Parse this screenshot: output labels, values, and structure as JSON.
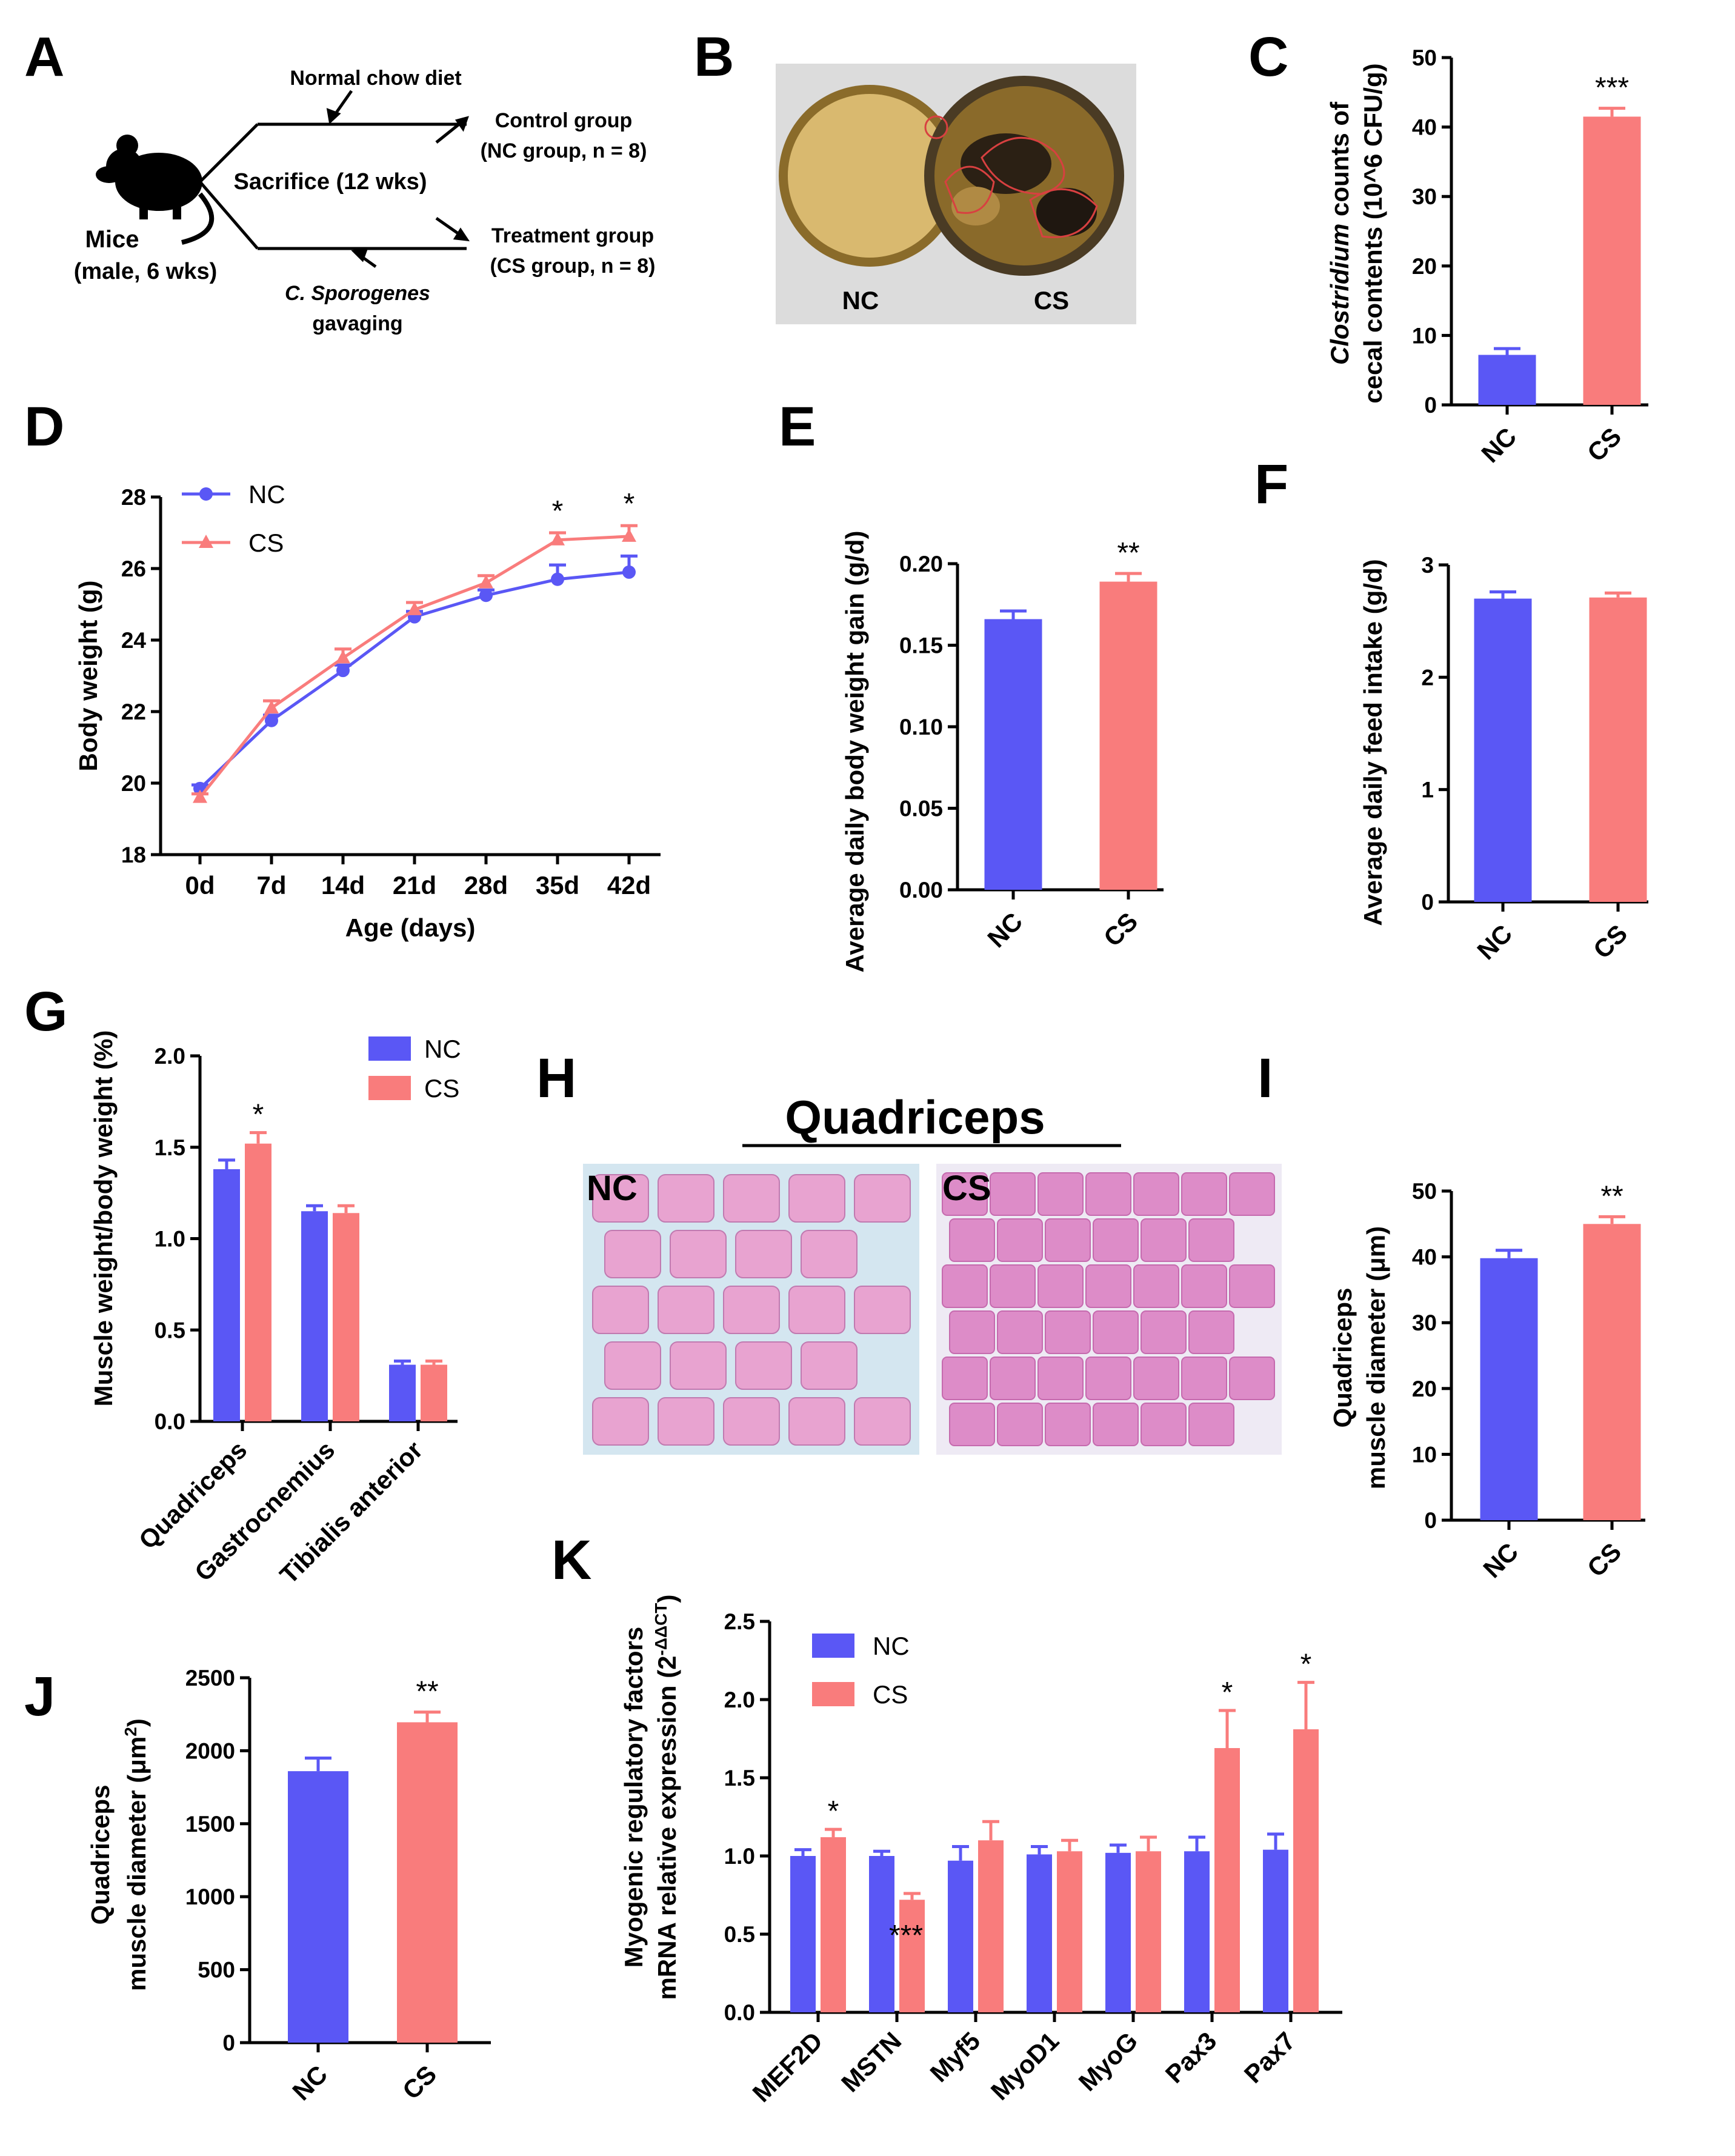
{
  "colors": {
    "nc": "#5a57f5",
    "cs": "#f97c7c",
    "axis": "#000000"
  },
  "panel_labels": [
    "A",
    "B",
    "C",
    "D",
    "E",
    "F",
    "G",
    "H",
    "I",
    "J",
    "K"
  ],
  "diagram": {
    "diet": "Normal chow diet",
    "mice": "Mice",
    "mice_info": "(male, 6 wks)",
    "sacrifice": "Sacrifice (12 wks)",
    "control": "Control group",
    "control_n": "(NC group, n = 8)",
    "treatment": "Treatment group",
    "treatment_n": "(CS group, n = 8)",
    "gavage_species": "C. Sporogenes",
    "gavage": "gavaging",
    "mouse_icon": "mouse-icon"
  },
  "photo_b": {
    "left_label": "NC",
    "right_label": "CS"
  },
  "histology": {
    "title": "Quadriceps",
    "left_label": "NC",
    "right_label": "CS"
  },
  "chart_data": [
    {
      "id": "C",
      "type": "bar",
      "categories": [
        "NC",
        "CS"
      ],
      "values": [
        7.2,
        41.5
      ],
      "errors": [
        0.9,
        1.2
      ],
      "ylim": [
        0,
        50
      ],
      "yticks": [
        0,
        10,
        20,
        30,
        40,
        50
      ],
      "ylabel_italic": "Clostridium",
      "ylabel_rest": " counts of",
      "ylabel2": "cecal contents (10^6 CFU/g)",
      "annotations": [
        "",
        "***"
      ]
    },
    {
      "id": "D",
      "type": "line",
      "x": [
        "0d",
        "7d",
        "14d",
        "21d",
        "28d",
        "35d",
        "42d"
      ],
      "series": [
        {
          "name": "NC",
          "values": [
            19.85,
            21.75,
            23.15,
            24.65,
            25.25,
            25.7,
            25.9
          ],
          "errors": [
            0.1,
            0.15,
            0.15,
            0.15,
            0.15,
            0.4,
            0.45
          ]
        },
        {
          "name": "CS",
          "values": [
            19.6,
            22.1,
            23.5,
            24.85,
            25.6,
            26.8,
            26.9
          ],
          "errors": [
            0.1,
            0.2,
            0.25,
            0.2,
            0.2,
            0.2,
            0.3
          ]
        }
      ],
      "ylim": [
        18,
        28
      ],
      "yticks": [
        18,
        20,
        22,
        24,
        26,
        28
      ],
      "xlabel": "Age (days)",
      "ylabel": "Body weight (g)",
      "annotations": [
        "",
        "",
        "",
        "",
        "",
        "*",
        "*"
      ]
    },
    {
      "id": "E",
      "type": "bar",
      "categories": [
        "NC",
        "CS"
      ],
      "values": [
        0.166,
        0.189
      ],
      "errors": [
        0.005,
        0.005
      ],
      "ylim": [
        0,
        0.2
      ],
      "yticks": [
        "0.00",
        "0.05",
        "0.10",
        "0.15",
        "0.20"
      ],
      "ylabel": "Average daily body weight gain (g/d)",
      "annotations": [
        "",
        "**"
      ]
    },
    {
      "id": "F",
      "type": "bar",
      "categories": [
        "NC",
        "CS"
      ],
      "values": [
        2.7,
        2.71
      ],
      "errors": [
        0.06,
        0.04
      ],
      "ylim": [
        0,
        3
      ],
      "yticks": [
        0,
        1,
        2,
        3
      ],
      "ylabel": "Average daily feed intake (g/d)",
      "annotations": [
        "",
        ""
      ]
    },
    {
      "id": "G",
      "type": "bar",
      "categories": [
        "Quadriceps",
        "Gastrocnemius",
        "Tibialis anterior"
      ],
      "series": [
        {
          "name": "NC",
          "values": [
            1.38,
            1.15,
            0.31
          ],
          "errors": [
            0.05,
            0.03,
            0.02
          ]
        },
        {
          "name": "CS",
          "values": [
            1.52,
            1.14,
            0.31
          ],
          "errors": [
            0.06,
            0.04,
            0.02
          ]
        }
      ],
      "ylim": [
        0,
        2.0
      ],
      "yticks": [
        "0.0",
        "0.5",
        "1.0",
        "1.5",
        "2.0"
      ],
      "ylabel": "Muscle weight/body weight (%)",
      "annotations": [
        "*",
        "",
        ""
      ]
    },
    {
      "id": "I",
      "type": "bar",
      "categories": [
        "NC",
        "CS"
      ],
      "values": [
        39.8,
        45.0
      ],
      "errors": [
        1.2,
        1.1
      ],
      "ylim": [
        0,
        50
      ],
      "yticks": [
        0,
        10,
        20,
        30,
        40,
        50
      ],
      "ylabel": "Quadriceps",
      "ylabel2": "muscle diameter (μm)",
      "annotations": [
        "",
        "**"
      ]
    },
    {
      "id": "J",
      "type": "bar",
      "categories": [
        "NC",
        "CS"
      ],
      "values": [
        1860,
        2195
      ],
      "errors": [
        90,
        70
      ],
      "ylim": [
        0,
        2500
      ],
      "yticks": [
        0,
        500,
        1000,
        1500,
        2000,
        2500
      ],
      "ylabel": "Quadriceps",
      "ylabel2_main": "muscle diameter (μm",
      "ylabel2_sup": "2",
      "ylabel2_end": ")",
      "annotations": [
        "",
        "**"
      ]
    },
    {
      "id": "K",
      "type": "bar",
      "categories": [
        "MEF2D",
        "MSTN",
        "Myf5",
        "MyoD1",
        "MyoG",
        "Pax3",
        "Pax7"
      ],
      "series": [
        {
          "name": "NC",
          "values": [
            1.0,
            1.0,
            0.97,
            1.01,
            1.02,
            1.03,
            1.04
          ],
          "errors": [
            0.04,
            0.03,
            0.09,
            0.05,
            0.05,
            0.09,
            0.1
          ]
        },
        {
          "name": "CS",
          "values": [
            1.12,
            0.72,
            1.1,
            1.03,
            1.03,
            1.69,
            1.81
          ],
          "errors": [
            0.05,
            0.04,
            0.12,
            0.07,
            0.09,
            0.24,
            0.3
          ]
        }
      ],
      "ylim": [
        0,
        2.5
      ],
      "yticks": [
        "0.0",
        "0.5",
        "1.0",
        "1.5",
        "2.0",
        "2.5"
      ],
      "ylabel": "Myogenic regulatory factors",
      "ylabel2_main": "mRNA relative expression (2",
      "ylabel2_sup": "-ΔΔCT",
      "ylabel2_end": ")",
      "annotations": [
        "*",
        "***",
        "",
        "",
        "",
        "*",
        "*"
      ]
    }
  ]
}
